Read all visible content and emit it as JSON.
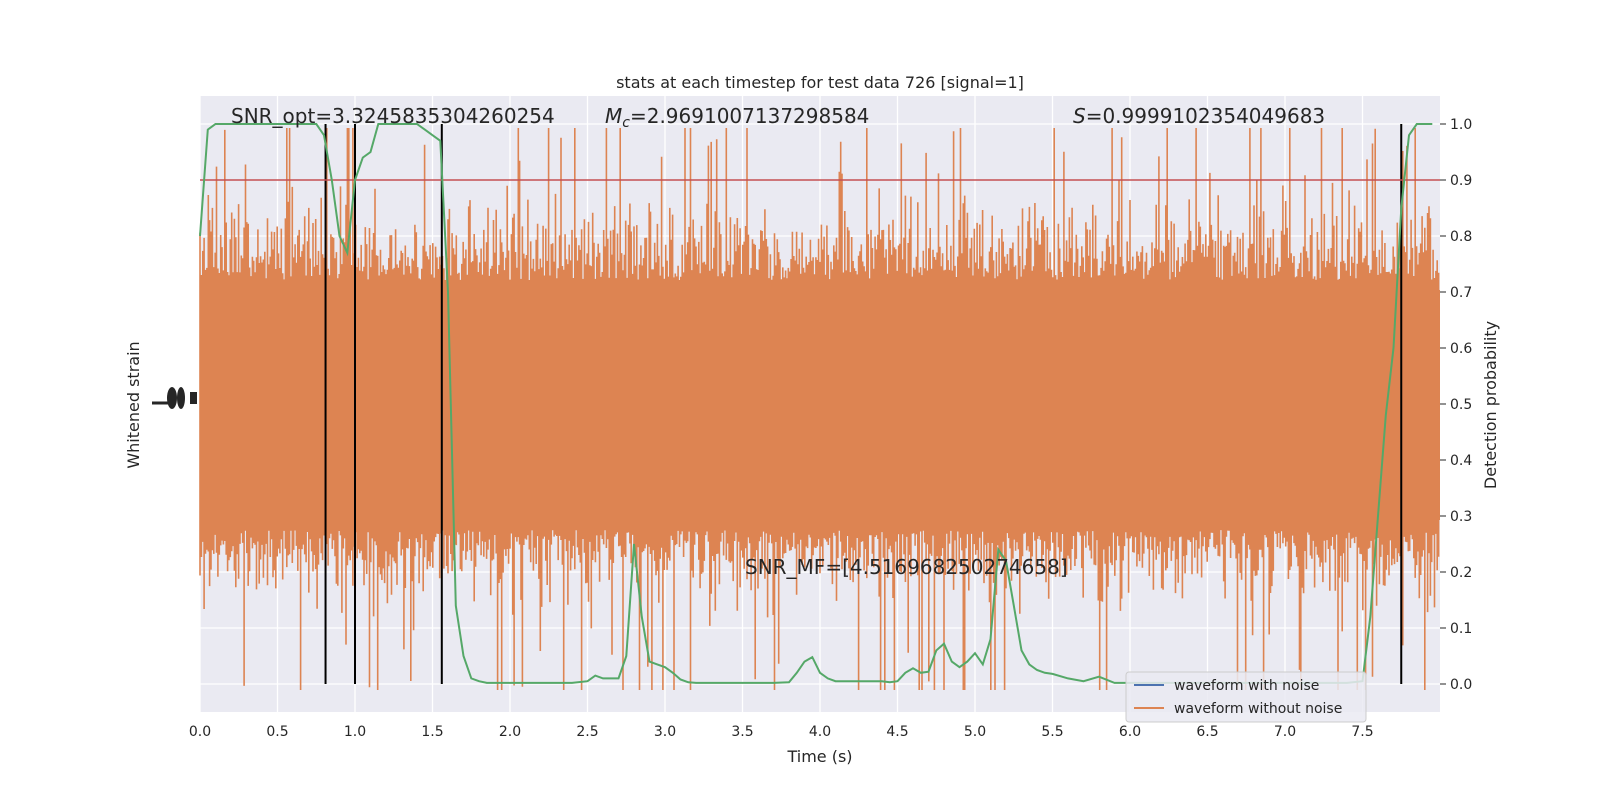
{
  "chart_data": {
    "type": "line",
    "title": "stats at each timestep for test data 726 [signal=1]",
    "xlabel": "Time (s)",
    "ylabel_left": "Whitened strain",
    "ylabel_right": "Detection probability",
    "xlim": [
      0,
      8
    ],
    "ylim_right": [
      -0.05,
      1.05
    ],
    "x_ticks": [
      "0.0",
      "0.5",
      "1.0",
      "1.5",
      "2.0",
      "2.5",
      "3.0",
      "3.5",
      "4.0",
      "4.5",
      "5.0",
      "5.5",
      "6.0",
      "6.5",
      "7.0",
      "7.5"
    ],
    "y_ticks_right": [
      "0.0",
      "0.1",
      "0.2",
      "0.3",
      "0.4",
      "0.5",
      "0.6",
      "0.7",
      "0.8",
      "0.9",
      "1.0"
    ],
    "grid": true,
    "legend_position": "lower-right",
    "threshold": 0.9,
    "vlines": [
      0.81,
      1.0,
      1.56,
      7.75
    ],
    "annotations": {
      "snr_opt": "SNR_opt=3.3245835304260254",
      "mc_symbol": "M",
      "mc_sub": "c",
      "mc_value": "=2.9691007137298584",
      "s_symbol": "S",
      "s_value": "=0.9999102354049683",
      "snr_mf": "SNR_MF=[4.516968250274658]"
    },
    "series": [
      {
        "name": "waveform with noise",
        "color": "#4c72b0"
      },
      {
        "name": "waveform without noise",
        "color": "#dd8452"
      },
      {
        "color": "#55a868",
        "x": [
          0,
          0.05,
          0.1,
          0.15,
          0.2,
          0.3,
          0.4,
          0.5,
          0.6,
          0.7,
          0.75,
          0.8,
          0.85,
          0.9,
          0.95,
          1.0,
          1.05,
          1.1,
          1.15,
          1.2,
          1.25,
          1.3,
          1.35,
          1.4,
          1.45,
          1.5,
          1.55,
          1.6,
          1.65,
          1.7,
          1.75,
          1.8,
          1.85,
          1.9,
          2.0,
          2.1,
          2.2,
          2.3,
          2.4,
          2.5,
          2.55,
          2.6,
          2.7,
          2.75,
          2.8,
          2.85,
          2.9,
          2.95,
          3.0,
          3.05,
          3.1,
          3.15,
          3.2,
          3.3,
          3.4,
          3.5,
          3.6,
          3.7,
          3.8,
          3.85,
          3.9,
          3.95,
          4.0,
          4.05,
          4.1,
          4.2,
          4.3,
          4.4,
          4.45,
          4.5,
          4.55,
          4.6,
          4.65,
          4.7,
          4.75,
          4.8,
          4.85,
          4.9,
          4.95,
          5.0,
          5.05,
          5.1,
          5.15,
          5.2,
          5.25,
          5.3,
          5.35,
          5.4,
          5.45,
          5.5,
          5.6,
          5.7,
          5.8,
          5.9,
          6.0,
          6.2,
          6.4,
          6.6,
          6.8,
          7.0,
          7.2,
          7.4,
          7.5,
          7.55,
          7.6,
          7.65,
          7.7,
          7.75,
          7.8,
          7.85,
          7.9,
          7.95
        ],
        "values": [
          0.8,
          0.99,
          1.0,
          1.0,
          1.0,
          1.0,
          1.0,
          1.0,
          1.0,
          1.0,
          1.0,
          0.98,
          0.9,
          0.8,
          0.77,
          0.9,
          0.94,
          0.95,
          1.0,
          1.0,
          1.0,
          1.0,
          1.0,
          1.0,
          0.99,
          0.98,
          0.97,
          0.7,
          0.14,
          0.05,
          0.01,
          0.005,
          0.002,
          0.002,
          0.002,
          0.002,
          0.002,
          0.002,
          0.002,
          0.005,
          0.015,
          0.01,
          0.01,
          0.05,
          0.25,
          0.12,
          0.04,
          0.035,
          0.03,
          0.02,
          0.008,
          0.003,
          0.002,
          0.002,
          0.002,
          0.002,
          0.002,
          0.002,
          0.003,
          0.02,
          0.04,
          0.048,
          0.02,
          0.01,
          0.005,
          0.005,
          0.005,
          0.005,
          0.003,
          0.005,
          0.02,
          0.028,
          0.02,
          0.022,
          0.06,
          0.072,
          0.04,
          0.03,
          0.04,
          0.055,
          0.035,
          0.08,
          0.24,
          0.22,
          0.14,
          0.06,
          0.035,
          0.025,
          0.02,
          0.018,
          0.01,
          0.005,
          0.013,
          0.002,
          0.002,
          0.002,
          0.002,
          0.002,
          0.002,
          0.002,
          0.002,
          0.002,
          0.005,
          0.12,
          0.3,
          0.48,
          0.6,
          0.85,
          0.98,
          1.0,
          1.0,
          1.0
        ]
      }
    ]
  }
}
